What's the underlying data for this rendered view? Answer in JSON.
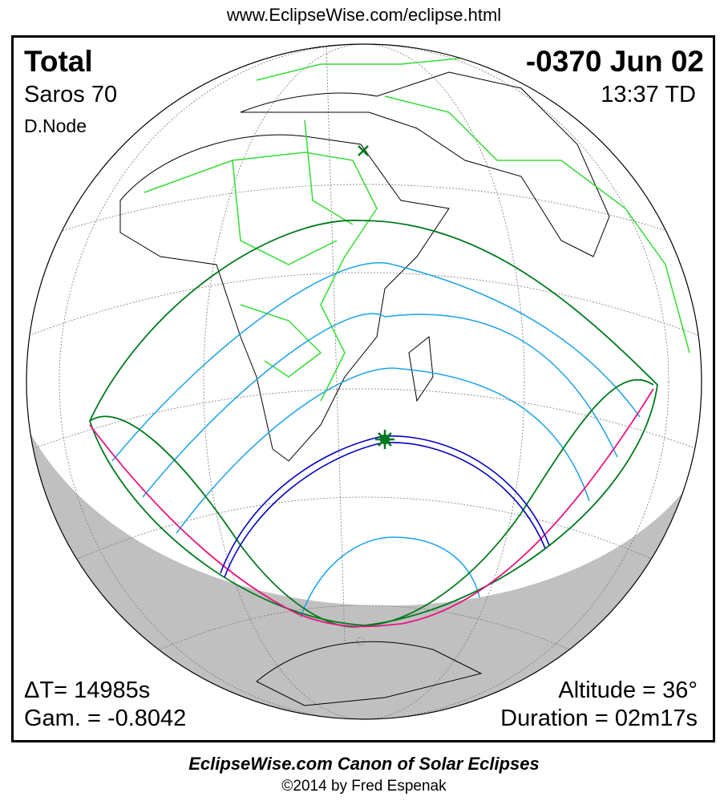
{
  "header_url": "www.EclipseWise.com/eclipse.html",
  "eclipse": {
    "type": "Total",
    "date": "-0370 Jun 02",
    "saros": "Saros  70",
    "time": "13:37 TD",
    "node": "D.Node",
    "delta_t": "ΔT=  14985s",
    "gamma": "Gam. = -0.8042",
    "altitude": "Altitude = 36°",
    "duration": "Duration = 02m17s"
  },
  "footer": {
    "title": "EclipseWise.com Canon of Solar Eclipses",
    "copyright": "©2014 by Fred Espenak"
  },
  "colors": {
    "penumbra_limits": "#007a1e",
    "partial_magnitude_lines": "#1aa3e8",
    "rise_set_curve": "#e8157f",
    "central_path": "#0000c0",
    "greatest_eclipse": "#007a1e",
    "political_borders": "#33dd33",
    "night_shading": "#c0c0c0"
  }
}
